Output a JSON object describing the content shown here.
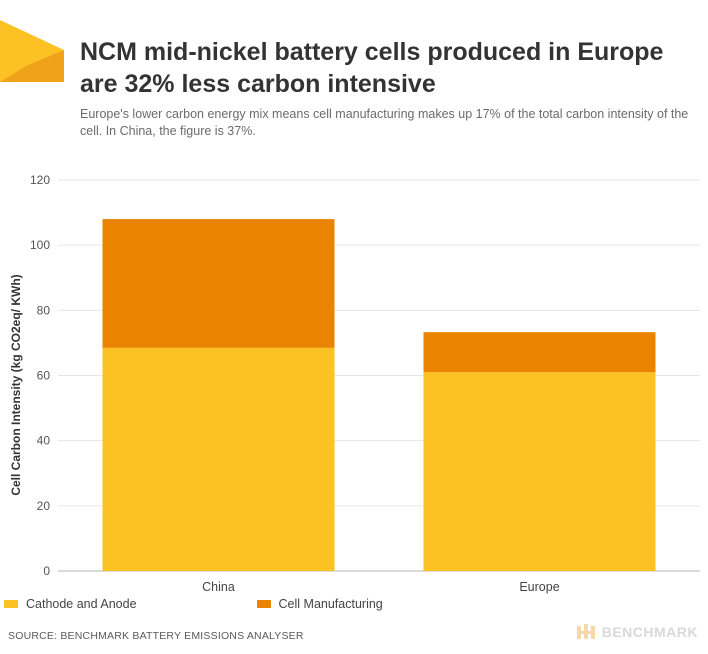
{
  "header": {
    "title": "NCM mid-nickel battery cells produced in Europe are 32% less carbon intensive",
    "subtitle": "Europe's lower carbon energy mix means cell manufacturing makes up 17% of the total carbon intensity of the cell. In China, the figure is 37%."
  },
  "legend": {
    "items": [
      {
        "label": "Cathode and Anode",
        "color": "#FCC223"
      },
      {
        "label": "Cell Manufacturing",
        "color": "#E98300"
      }
    ]
  },
  "footer": {
    "source": "SOURCE: BENCHMARK BATTERY EMISSIONS ANALYSER",
    "brand": "BENCHMARK"
  },
  "colors": {
    "accent_yellow": "#FCC223",
    "accent_orange": "#E98300",
    "logo_dark": "#F0A21B"
  },
  "chart_data": {
    "type": "bar",
    "stacked": true,
    "categories": [
      "China",
      "Europe"
    ],
    "series": [
      {
        "name": "Cathode and Anode",
        "values": [
          68.5,
          61
        ],
        "color": "#FCC223"
      },
      {
        "name": "Cell Manufacturing",
        "values": [
          39.5,
          12.3
        ],
        "color": "#E98300"
      }
    ],
    "title": "NCM mid-nickel battery cells produced in Europe are 32% less carbon intensive",
    "xlabel": "",
    "ylabel": "Cell Carbon Intensity (kg CO2eq/ KWh)",
    "ylim": [
      0,
      120
    ],
    "yticks": [
      0,
      20,
      40,
      60,
      80,
      100,
      120
    ],
    "grid": true,
    "legend_position": "bottom-left"
  }
}
